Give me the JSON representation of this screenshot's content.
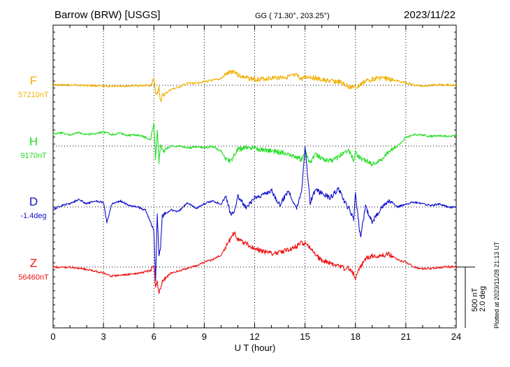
{
  "header": {
    "station": "Barrow (BRW)  [USGS]",
    "coords": "GG ( 71.30°, 203.25°)",
    "date": "2023/11/22"
  },
  "side_note": "Plotted at 2023/11/28 21:13 UT",
  "scale": {
    "nt": "500 nT",
    "deg": "2.0 deg"
  },
  "colors": {
    "F": "#f0b000",
    "H": "#22dd22",
    "D": "#1010cc",
    "Z": "#ee1111"
  },
  "chart_data": {
    "type": "line",
    "title": "Barrow (BRW)  [USGS]",
    "xlabel": "U T (hour)",
    "ylabel": "",
    "xlim": [
      0,
      24
    ],
    "x_ticks": [
      0,
      3,
      6,
      9,
      12,
      15,
      18,
      21,
      24
    ],
    "x_tick_labels": [
      "0",
      "3",
      "6",
      "9",
      "12",
      "15",
      "18",
      "21",
      "24"
    ],
    "grid": true,
    "units_scale": {
      "nT_per_bar": 500,
      "deg_per_bar": 2.0
    },
    "series": [
      {
        "name": "F",
        "unit": "nT",
        "baseline_label": "57210nT",
        "baseline": 57210,
        "x": [
          0,
          0.5,
          1,
          1.5,
          2,
          2.5,
          3,
          3.5,
          4,
          4.5,
          5,
          5.5,
          5.8,
          6,
          6.1,
          6.2,
          6.3,
          6.4,
          6.5,
          7,
          7.5,
          8,
          8.5,
          9,
          9.5,
          10,
          10.3,
          10.6,
          10.8,
          11,
          11.5,
          12,
          12.5,
          13,
          13.5,
          14,
          14.5,
          14.8,
          15,
          15.3,
          15.6,
          16,
          16.5,
          17,
          17.3,
          17.6,
          17.9,
          18,
          18.3,
          18.6,
          19,
          19.5,
          20,
          20.5,
          21,
          21.5,
          22,
          22.5,
          23,
          23.5,
          24
        ],
        "y": [
          57213,
          57212,
          57211,
          57212,
          57209,
          57207,
          57203,
          57202,
          57205,
          57204,
          57208,
          57207,
          57205,
          57260,
          57160,
          57130,
          57190,
          57080,
          57120,
          57175,
          57195,
          57225,
          57228,
          57240,
          57250,
          57265,
          57300,
          57320,
          57330,
          57295,
          57270,
          57260,
          57262,
          57270,
          57276,
          57280,
          57290,
          57260,
          57275,
          57282,
          57268,
          57253,
          57245,
          57238,
          57220,
          57198,
          57200,
          57185,
          57215,
          57245,
          57262,
          57272,
          57262,
          57245,
          57230,
          57212,
          57205,
          57210,
          57217,
          57213,
          57210
        ]
      },
      {
        "name": "H",
        "unit": "nT",
        "baseline_label": "9170nT",
        "baseline": 9170,
        "x": [
          0,
          0.5,
          1,
          1.5,
          2,
          2.5,
          3,
          3.5,
          4,
          4.5,
          5,
          5.5,
          5.8,
          6,
          6.1,
          6.2,
          6.3,
          6.4,
          6.5,
          7,
          7.5,
          8,
          8.5,
          9,
          9.5,
          10,
          10.3,
          10.6,
          10.8,
          11,
          11.5,
          12,
          12.5,
          13,
          13.5,
          14,
          14.5,
          14.8,
          15,
          15.3,
          15.6,
          16,
          16.5,
          17,
          17.3,
          17.6,
          17.9,
          18,
          18.3,
          18.6,
          19,
          19.5,
          20,
          20.5,
          21,
          21.5,
          22,
          22.5,
          23,
          23.5,
          24
        ],
        "y": [
          9270,
          9278,
          9262,
          9280,
          9266,
          9272,
          9285,
          9265,
          9276,
          9257,
          9262,
          9242,
          9222,
          9345,
          9070,
          9300,
          9040,
          9180,
          9130,
          9168,
          9172,
          9155,
          9162,
          9158,
          9165,
          9130,
          9060,
          9050,
          9100,
          9140,
          9160,
          9150,
          9140,
          9130,
          9120,
          9110,
          9080,
          9060,
          9130,
          9030,
          9100,
          9070,
          9045,
          9080,
          9120,
          9140,
          9050,
          9120,
          9070,
          9050,
          9020,
          9050,
          9130,
          9170,
          9240,
          9265,
          9260,
          9250,
          9255,
          9250,
          9258
        ]
      },
      {
        "name": "D",
        "unit": "deg",
        "baseline_label": "-1.4deg",
        "baseline": -1.4,
        "x": [
          0,
          0.5,
          1,
          1.5,
          2,
          2.5,
          3,
          3.2,
          3.5,
          4,
          4.5,
          5,
          5.5,
          5.8,
          6,
          6.1,
          6.2,
          6.3,
          6.4,
          6.5,
          7,
          7.5,
          8,
          8.5,
          9,
          9.5,
          10,
          10.3,
          10.6,
          10.8,
          11,
          11.5,
          12,
          12.5,
          13,
          13.5,
          14,
          14.5,
          14.8,
          15,
          15.3,
          15.6,
          16,
          16.5,
          17,
          17.3,
          17.6,
          17.9,
          18,
          18.3,
          18.6,
          19,
          19.5,
          20,
          20.5,
          21,
          21.5,
          22,
          22.5,
          23,
          23.5,
          24
        ],
        "y": [
          -1.48,
          -1.36,
          -1.29,
          -1.15,
          -1.3,
          -1.2,
          -1.25,
          -1.9,
          -1.3,
          -1.2,
          -1.35,
          -1.4,
          -1.5,
          -1.9,
          -2.2,
          -3.8,
          -1.6,
          -3.0,
          -2.7,
          -1.7,
          -1.5,
          -1.55,
          -1.25,
          -1.45,
          -1.3,
          -1.2,
          -1.3,
          -1.05,
          -1.7,
          -1.5,
          -1.05,
          -1.45,
          -1.1,
          -1.0,
          -0.85,
          -1.35,
          -0.85,
          -1.45,
          -0.85,
          0.6,
          -1.25,
          -0.85,
          -0.95,
          -1.1,
          -0.8,
          -1.2,
          -1.45,
          -1.8,
          -1.0,
          -2.4,
          -1.4,
          -1.9,
          -1.45,
          -1.2,
          -1.4,
          -1.3,
          -1.25,
          -1.3,
          -1.35,
          -1.3,
          -1.4,
          -1.42
        ]
      },
      {
        "name": "Z",
        "unit": "nT",
        "baseline_label": "56460nT",
        "baseline": 56460,
        "x": [
          0,
          0.5,
          1,
          1.5,
          2,
          2.5,
          3,
          3.5,
          4,
          4.5,
          5,
          5.5,
          5.8,
          6,
          6.1,
          6.2,
          6.3,
          6.4,
          6.5,
          7,
          7.5,
          8,
          8.5,
          9,
          9.5,
          10,
          10.3,
          10.6,
          10.8,
          11,
          11.5,
          12,
          12.5,
          13,
          13.5,
          14,
          14.5,
          14.8,
          15,
          15.3,
          15.6,
          16,
          16.5,
          17,
          17.3,
          17.6,
          17.9,
          18,
          18.3,
          18.6,
          19,
          19.5,
          20,
          20.5,
          21,
          21.5,
          22,
          22.5,
          23,
          23.5,
          24
        ],
        "y": [
          56460,
          56456,
          56460,
          56452,
          56440,
          56426,
          56410,
          56385,
          56392,
          56400,
          56405,
          56420,
          56430,
          56470,
          56300,
          56360,
          56230,
          56290,
          56340,
          56410,
          56430,
          56450,
          56470,
          56500,
          56520,
          56560,
          56630,
          56700,
          56750,
          56690,
          56650,
          56610,
          56590,
          56570,
          56580,
          56600,
          56630,
          56660,
          56650,
          56620,
          56560,
          56515,
          56490,
          56470,
          56450,
          56450,
          56400,
          56375,
          56460,
          56530,
          56555,
          56555,
          56565,
          56520,
          56500,
          56460,
          56445,
          56448,
          56455,
          56462,
          56460
        ]
      }
    ]
  }
}
